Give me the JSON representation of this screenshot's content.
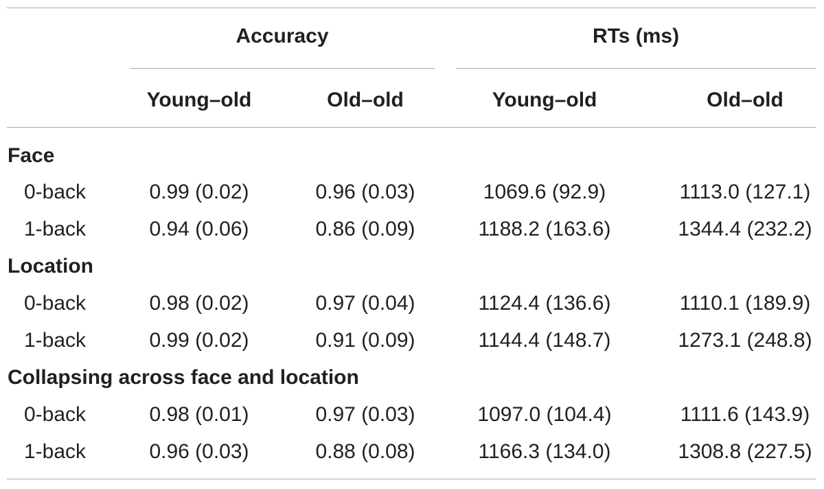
{
  "header": {
    "accuracy_label": "Accuracy",
    "rts_label": "RTs (ms)",
    "subheads": [
      "Young–old",
      "Old–old",
      "Young–old",
      "Old–old"
    ]
  },
  "sections": [
    {
      "title": "Face",
      "rows": [
        {
          "label": "0-back",
          "values": [
            "0.99 (0.02)",
            "0.96 (0.03)",
            "1069.6 (92.9)",
            "1113.0 (127.1)"
          ]
        },
        {
          "label": "1-back",
          "values": [
            "0.94 (0.06)",
            "0.86 (0.09)",
            "1188.2 (163.6)",
            "1344.4 (232.2)"
          ]
        }
      ]
    },
    {
      "title": "Location",
      "rows": [
        {
          "label": "0-back",
          "values": [
            "0.98 (0.02)",
            "0.97 (0.04)",
            "1124.4 (136.6)",
            "1110.1 (189.9)"
          ]
        },
        {
          "label": "1-back",
          "values": [
            "0.99 (0.02)",
            "0.91 (0.09)",
            "1144.4 (148.7)",
            "1273.1 (248.8)"
          ]
        }
      ]
    },
    {
      "title": "Collapsing across face and location",
      "rows": [
        {
          "label": "0-back",
          "values": [
            "0.98 (0.01)",
            "0.97 (0.03)",
            "1097.0 (104.4)",
            "1111.6 (143.9)"
          ]
        },
        {
          "label": "1-back",
          "values": [
            "0.96 (0.03)",
            "0.88 (0.08)",
            "1166.3 (134.0)",
            "1308.8 (227.5)"
          ]
        }
      ]
    }
  ]
}
